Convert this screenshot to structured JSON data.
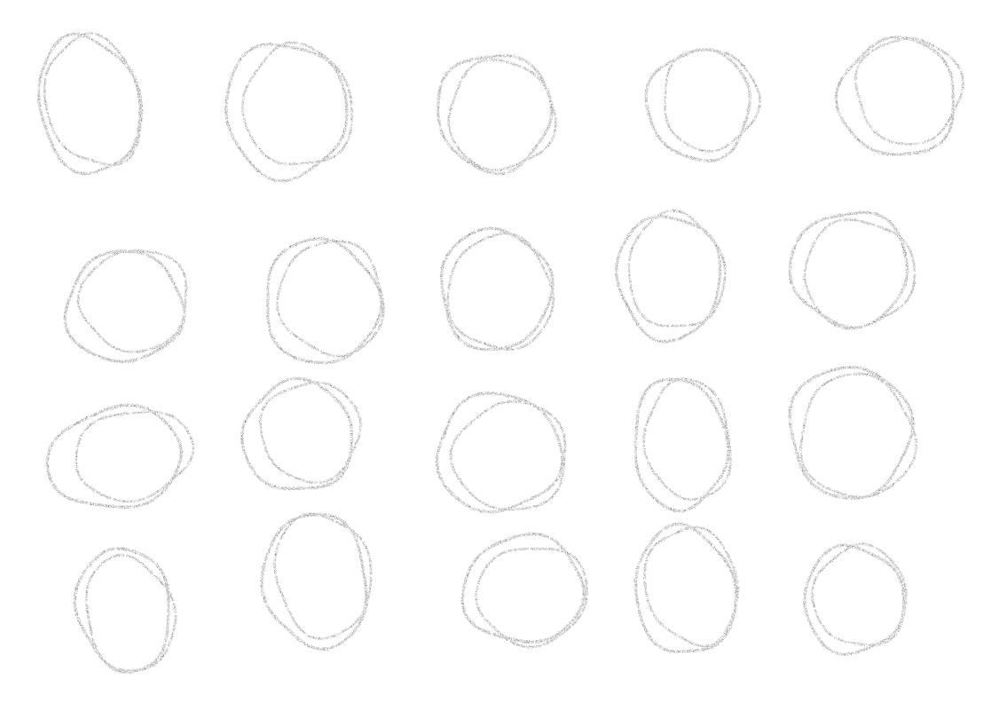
{
  "page": {
    "background": "#ffffff",
    "ink_color": "#555555"
  },
  "sketch": {
    "rows": 4,
    "columns": 5,
    "loop_count": 20
  }
}
